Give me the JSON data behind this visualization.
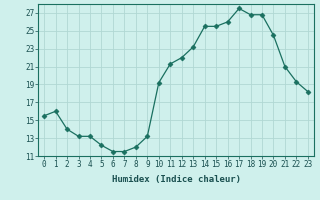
{
  "x": [
    0,
    1,
    2,
    3,
    4,
    5,
    6,
    7,
    8,
    9,
    10,
    11,
    12,
    13,
    14,
    15,
    16,
    17,
    18,
    19,
    20,
    21,
    22,
    23
  ],
  "y": [
    15.5,
    16.0,
    14.0,
    13.2,
    13.2,
    12.2,
    11.5,
    11.5,
    12.0,
    13.2,
    19.2,
    21.3,
    22.0,
    23.2,
    25.5,
    25.5,
    26.0,
    27.5,
    26.8,
    26.8,
    24.5,
    21.0,
    19.3,
    18.2
  ],
  "line_color": "#1a7060",
  "marker": "D",
  "marker_size": 2.5,
  "bg_color": "#cff0ec",
  "grid_color": "#b0d8d4",
  "xlabel": "Humidex (Indice chaleur)",
  "xlim": [
    -0.5,
    23.5
  ],
  "ylim": [
    11,
    28
  ],
  "yticks": [
    11,
    13,
    15,
    17,
    19,
    21,
    23,
    25,
    27
  ],
  "xtick_labels": [
    "0",
    "1",
    "2",
    "3",
    "4",
    "5",
    "6",
    "7",
    "8",
    "9",
    "10",
    "11",
    "12",
    "13",
    "14",
    "15",
    "16",
    "17",
    "18",
    "19",
    "20",
    "21",
    "22",
    "23"
  ],
  "xlabel_fontsize": 6.5,
  "tick_fontsize": 5.5
}
